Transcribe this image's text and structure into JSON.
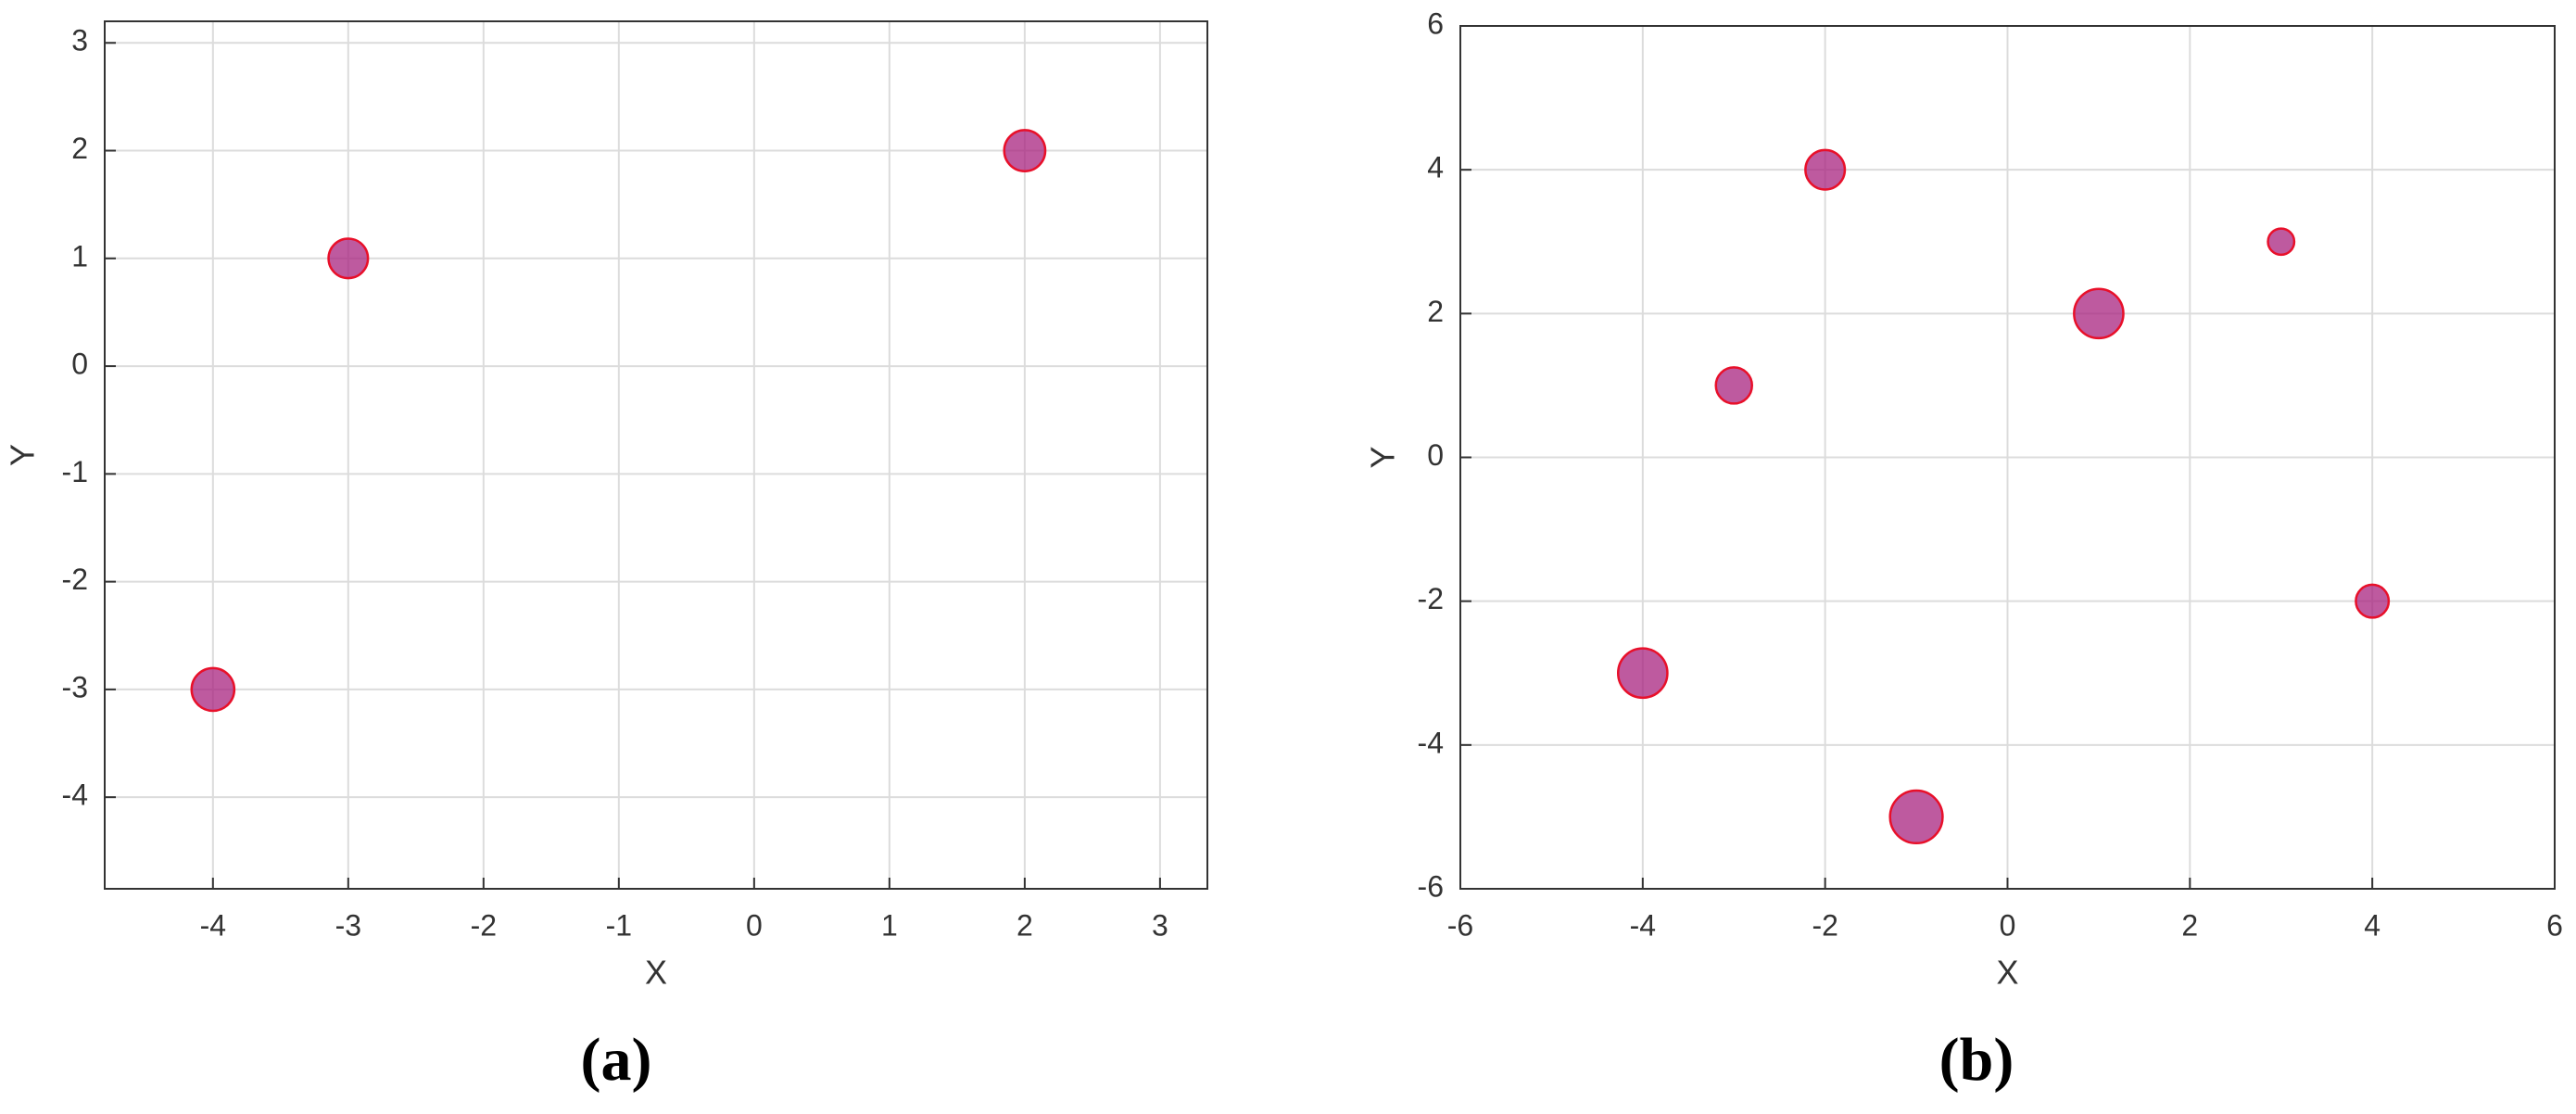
{
  "chart_data": [
    {
      "type": "scatter",
      "label": "(a)",
      "xlabel": "X",
      "ylabel": "Y",
      "x": [
        -4,
        -3,
        2
      ],
      "y": [
        -3,
        1,
        2
      ],
      "sizes": [
        13,
        12,
        12.5
      ],
      "xlim": [
        -4.8,
        3.35
      ],
      "ylim": [
        -4.85,
        3.2
      ],
      "xticks": [
        -4,
        -3,
        -2,
        -1,
        0,
        1,
        2,
        3
      ],
      "yticks": [
        -4,
        -3,
        -2,
        -1,
        0,
        1,
        2,
        3
      ],
      "grid": true,
      "color": "#a8237f",
      "edge_color": "#e8102a"
    },
    {
      "type": "scatter",
      "label": "(b)",
      "xlabel": "X",
      "ylabel": "Y",
      "x": [
        -4,
        -3,
        -2,
        -1,
        1,
        3,
        4
      ],
      "y": [
        -3,
        1,
        4,
        -5,
        2,
        3,
        -2
      ],
      "sizes": [
        15,
        11,
        12,
        16,
        15,
        8,
        10
      ],
      "xlim": [
        -6,
        6
      ],
      "ylim": [
        -6,
        6
      ],
      "xticks": [
        -6,
        -4,
        -2,
        0,
        2,
        4,
        6
      ],
      "yticks": [
        -6,
        -4,
        -2,
        0,
        2,
        4,
        6
      ],
      "grid": true,
      "color": "#a8237f",
      "edge_color": "#e8102a"
    }
  ]
}
